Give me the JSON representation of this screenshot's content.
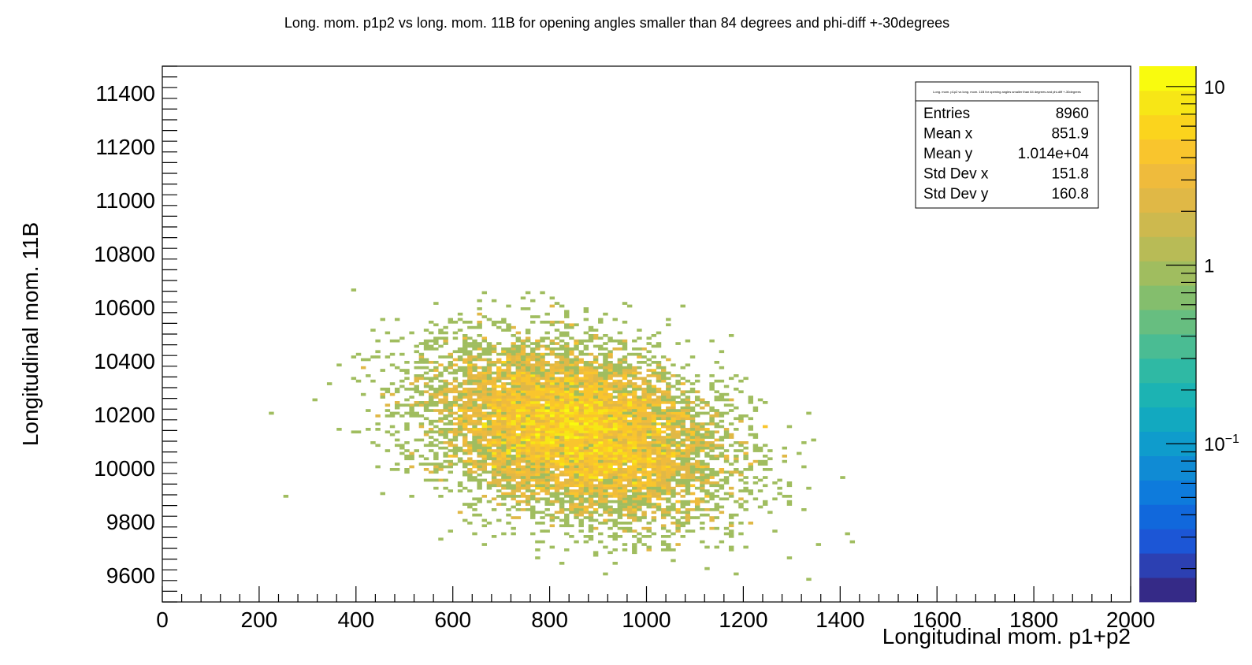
{
  "chart_data": {
    "type": "heatmap",
    "title": "Long.  mom. p1p2 vs long. mom. 11B for opening angles smaller than 84 degrees and phi-diff +-30degrees",
    "xlabel": "Longitudinal mom. p1+p2",
    "ylabel": "Longitudinal mom. 11B",
    "xlim": [
      0,
      2000
    ],
    "ylim": [
      9500,
      11500
    ],
    "x_ticks": [
      "0",
      "200",
      "400",
      "600",
      "800",
      "1000",
      "1200",
      "1400",
      "1600",
      "1800",
      "2000"
    ],
    "y_ticks": [
      "9600",
      "9800",
      "10000",
      "10200",
      "10400",
      "10600",
      "10800",
      "11000",
      "11200",
      "11400"
    ],
    "colorbar": {
      "scale": "log",
      "range": [
        0.013,
        13
      ],
      "labels": [
        {
          "value": 10,
          "text": "10"
        },
        {
          "value": 1,
          "text": "1"
        },
        {
          "value": 0.1,
          "text": "10",
          "exponent": "−1"
        }
      ],
      "palette": [
        "#352a87",
        "#2c40b2",
        "#1c56d6",
        "#1168dc",
        "#0e7bdc",
        "#108bd4",
        "#0f9ccc",
        "#12a9c0",
        "#1cb3b3",
        "#2fb9a4",
        "#4abc93",
        "#67be80",
        "#84be6d",
        "#a0bd5f",
        "#b8bb56",
        "#cdb94e",
        "#e0b846",
        "#efbb3c",
        "#f9c52d",
        "#fbd41d",
        "#f7e616",
        "#f9fb0e"
      ]
    },
    "statistics": {
      "header": "Long.  mom. p1p2 vs long. mom. 11B for opening angles smaller than 84 degrees and phi-diff +-30degrees",
      "rows": [
        {
          "label": "Entries",
          "value": "8960"
        },
        {
          "label": "Mean x",
          "value": "851.9"
        },
        {
          "label": "Mean y",
          "value": "1.014e+04"
        },
        {
          "label": "Std Dev x",
          "value": "151.8"
        },
        {
          "label": "Std Dev y",
          "value": "160.8"
        }
      ]
    },
    "entries": 8960,
    "mean_x": 851.9,
    "mean_y": 10140,
    "std_x": 151.8,
    "std_y": 160.8,
    "correlation": -0.3,
    "bin_width_x": 10,
    "bin_width_y": 10
  }
}
